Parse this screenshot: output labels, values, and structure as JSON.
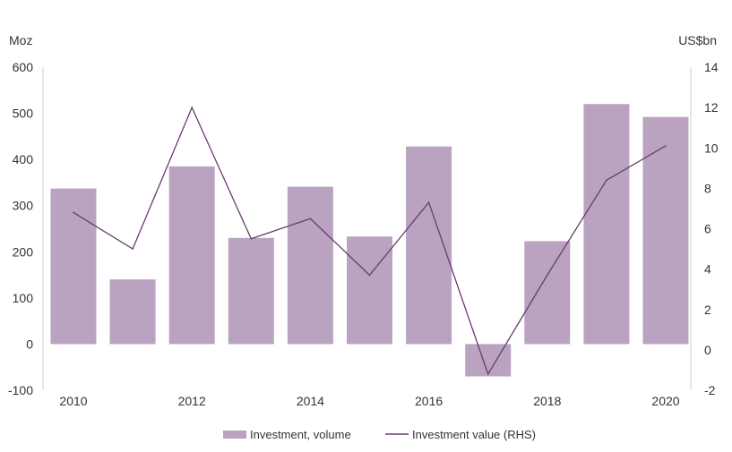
{
  "chart_data": {
    "type": "bar+line",
    "title": "",
    "x": [
      2010,
      2011,
      2012,
      2013,
      2014,
      2015,
      2016,
      2017,
      2018,
      2019,
      2020
    ],
    "x_tick_labels": [
      "2010",
      "2012",
      "2014",
      "2016",
      "2018",
      "2020"
    ],
    "x_tick_values": [
      2010,
      2012,
      2014,
      2016,
      2018,
      2020
    ],
    "left_axis": {
      "unit": "Moz",
      "ylim": [
        -100,
        600
      ],
      "ticks": [
        -100,
        0,
        100,
        200,
        300,
        400,
        500,
        600
      ]
    },
    "right_axis": {
      "unit": "US$bn",
      "ylim": [
        -2,
        14
      ],
      "ticks": [
        -2,
        0,
        2,
        4,
        6,
        8,
        10,
        12,
        14
      ]
    },
    "series": [
      {
        "name": "Investment, volume",
        "type": "bar",
        "axis": "left",
        "color": "#b9a3c1",
        "values": [
          337,
          140,
          385,
          230,
          341,
          233,
          428,
          -70,
          223,
          520,
          492
        ]
      },
      {
        "name": "Investment value (RHS)",
        "type": "line",
        "axis": "right",
        "color": "#6b3a72",
        "values": [
          6.8,
          5.0,
          12.0,
          5.5,
          6.5,
          3.7,
          7.3,
          -1.2,
          3.7,
          8.4,
          10.1
        ]
      }
    ],
    "grid": false,
    "legend_position": "bottom-center"
  }
}
